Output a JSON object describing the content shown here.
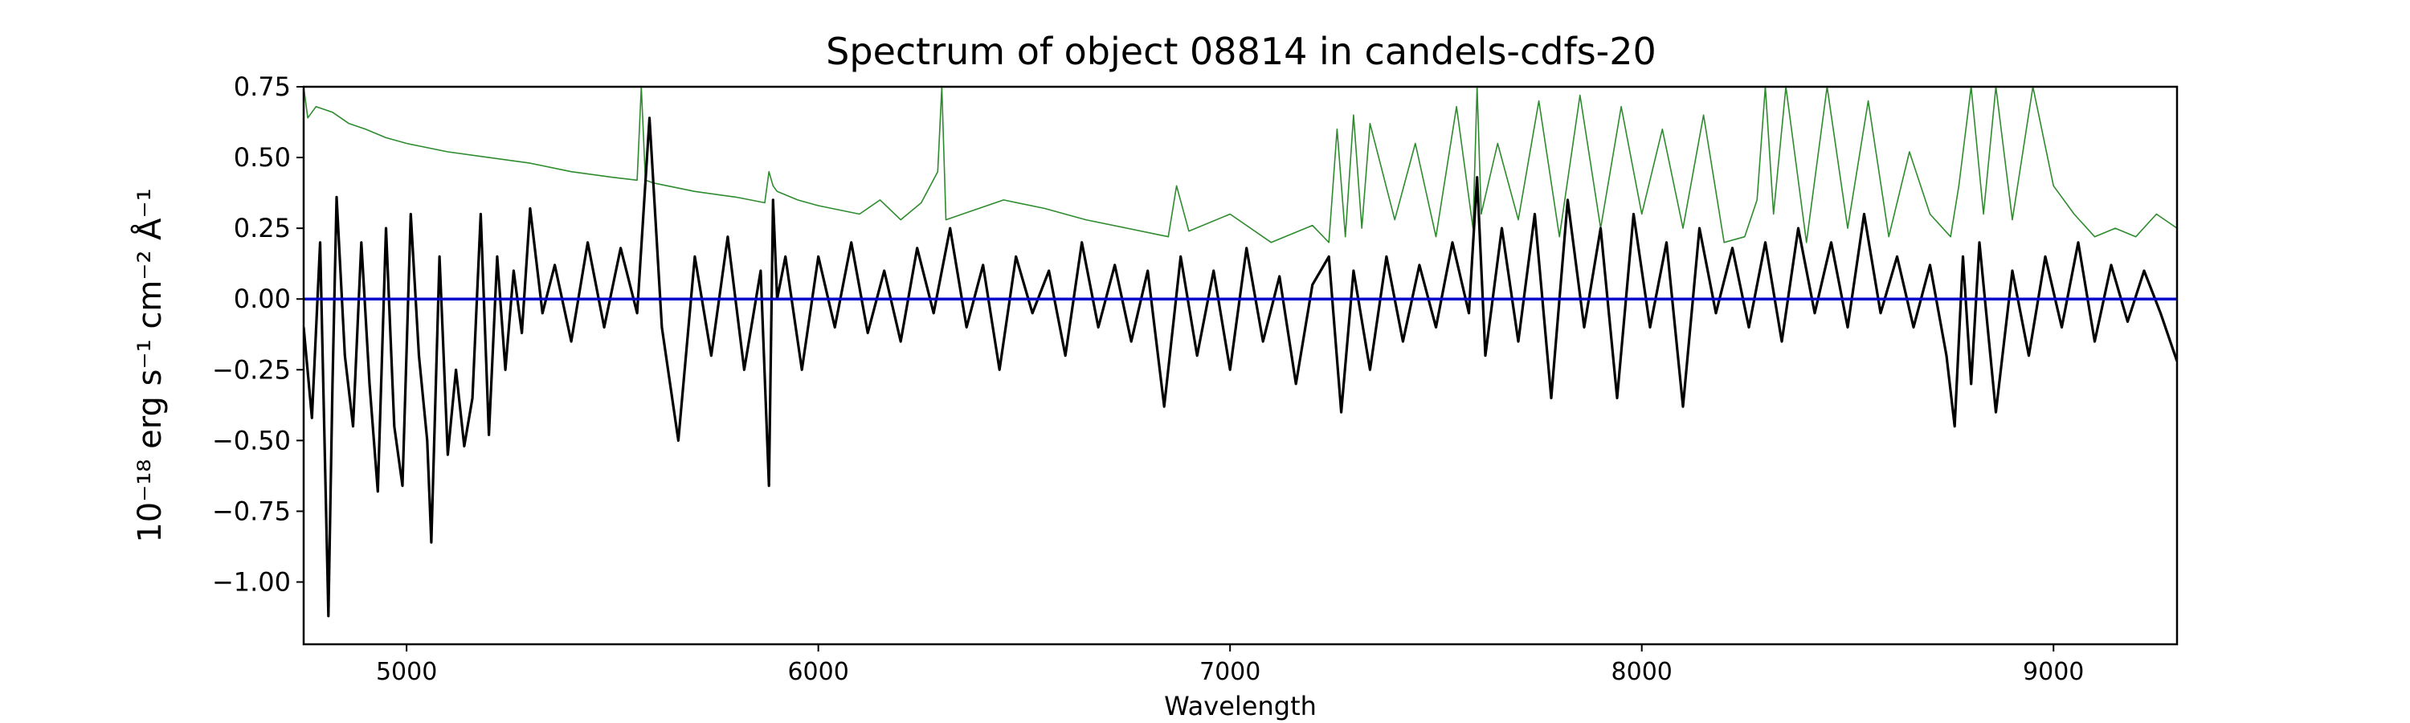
{
  "chart_data": {
    "type": "line",
    "title": "Spectrum of object 08814 in candels-cdfs-20",
    "xlabel": "Wavelength",
    "ylabel": "10⁻¹⁸ erg s⁻¹ cm⁻² Å⁻¹",
    "xlim": [
      4750,
      9300
    ],
    "ylim": [
      -1.22,
      0.75
    ],
    "xticks": [
      5000,
      6000,
      7000,
      8000,
      9000
    ],
    "xtick_labels": [
      "5000",
      "6000",
      "7000",
      "8000",
      "9000"
    ],
    "yticks": [
      0.75,
      0.5,
      0.25,
      0.0,
      -0.25,
      -0.5,
      -0.75,
      -1.0
    ],
    "ytick_labels": [
      "0.75",
      "0.50",
      "0.25",
      "0.00",
      "−0.25",
      "−0.50",
      "−0.75",
      "−1.00"
    ],
    "grid": false,
    "colors": {
      "flux": "#000000",
      "error": "#2e8b2e",
      "zero": "#0000cc"
    },
    "series": [
      {
        "role": "flux",
        "x": [
          4750,
          4770,
          4790,
          4810,
          4820,
          4830,
          4850,
          4870,
          4890,
          4910,
          4930,
          4950,
          4970,
          4990,
          5010,
          5030,
          5050,
          5060,
          5080,
          5100,
          5120,
          5140,
          5160,
          5180,
          5200,
          5220,
          5240,
          5260,
          5280,
          5300,
          5330,
          5360,
          5400,
          5440,
          5480,
          5520,
          5560,
          5590,
          5620,
          5660,
          5700,
          5740,
          5780,
          5820,
          5860,
          5880,
          5890,
          5900,
          5920,
          5960,
          6000,
          6040,
          6080,
          6120,
          6160,
          6200,
          6240,
          6280,
          6320,
          6360,
          6400,
          6440,
          6480,
          6520,
          6560,
          6600,
          6640,
          6680,
          6720,
          6760,
          6800,
          6840,
          6880,
          6920,
          6960,
          7000,
          7040,
          7080,
          7120,
          7160,
          7200,
          7240,
          7270,
          7300,
          7340,
          7380,
          7420,
          7460,
          7500,
          7540,
          7580,
          7600,
          7620,
          7660,
          7700,
          7740,
          7780,
          7820,
          7860,
          7900,
          7940,
          7980,
          8020,
          8060,
          8100,
          8140,
          8180,
          8220,
          8260,
          8300,
          8340,
          8380,
          8420,
          8460,
          8500,
          8540,
          8580,
          8620,
          8660,
          8700,
          8740,
          8760,
          8780,
          8800,
          8820,
          8860,
          8900,
          8940,
          8980,
          9020,
          9060,
          9100,
          9140,
          9180,
          9220,
          9260,
          9300
        ],
        "y": [
          -0.1,
          -0.42,
          0.2,
          -1.12,
          -0.3,
          0.36,
          -0.2,
          -0.45,
          0.2,
          -0.3,
          -0.68,
          0.25,
          -0.45,
          -0.66,
          0.3,
          -0.2,
          -0.5,
          -0.86,
          0.15,
          -0.55,
          -0.25,
          -0.52,
          -0.35,
          0.3,
          -0.48,
          0.15,
          -0.25,
          0.1,
          -0.12,
          0.32,
          -0.05,
          0.12,
          -0.15,
          0.2,
          -0.1,
          0.18,
          -0.05,
          0.64,
          -0.1,
          -0.5,
          0.15,
          -0.2,
          0.22,
          -0.25,
          0.1,
          -0.66,
          0.35,
          0.0,
          0.15,
          -0.25,
          0.15,
          -0.1,
          0.2,
          -0.12,
          0.1,
          -0.15,
          0.18,
          -0.05,
          0.25,
          -0.1,
          0.12,
          -0.25,
          0.15,
          -0.05,
          0.1,
          -0.2,
          0.2,
          -0.1,
          0.12,
          -0.15,
          0.1,
          -0.38,
          0.15,
          -0.2,
          0.1,
          -0.25,
          0.18,
          -0.15,
          0.08,
          -0.3,
          0.05,
          0.15,
          -0.4,
          0.1,
          -0.25,
          0.15,
          -0.15,
          0.12,
          -0.1,
          0.2,
          -0.05,
          0.43,
          -0.2,
          0.25,
          -0.15,
          0.3,
          -0.35,
          0.35,
          -0.1,
          0.25,
          -0.35,
          0.3,
          -0.1,
          0.2,
          -0.38,
          0.25,
          -0.05,
          0.18,
          -0.1,
          0.2,
          -0.15,
          0.25,
          -0.05,
          0.2,
          -0.1,
          0.3,
          -0.05,
          0.15,
          -0.1,
          0.12,
          -0.2,
          -0.45,
          0.15,
          -0.3,
          0.2,
          -0.4,
          0.1,
          -0.2,
          0.15,
          -0.1,
          0.2,
          -0.15,
          0.12,
          -0.08,
          0.1,
          -0.05,
          -0.22
        ]
      },
      {
        "role": "error",
        "x": [
          4750,
          4760,
          4780,
          4820,
          4860,
          4900,
          4950,
          5000,
          5100,
          5200,
          5300,
          5400,
          5500,
          5560,
          5570,
          5580,
          5600,
          5700,
          5800,
          5870,
          5880,
          5890,
          5900,
          5950,
          6000,
          6100,
          6150,
          6200,
          6250,
          6290,
          6300,
          6310,
          6350,
          6450,
          6550,
          6650,
          6750,
          6850,
          6870,
          6900,
          7000,
          7100,
          7200,
          7240,
          7260,
          7280,
          7300,
          7320,
          7340,
          7400,
          7450,
          7500,
          7550,
          7590,
          7600,
          7610,
          7650,
          7700,
          7750,
          7800,
          7850,
          7900,
          7950,
          8000,
          8050,
          8100,
          8150,
          8200,
          8250,
          8280,
          8300,
          8320,
          8350,
          8400,
          8450,
          8500,
          8550,
          8600,
          8650,
          8700,
          8750,
          8770,
          8800,
          8830,
          8860,
          8900,
          8950,
          9000,
          9050,
          9100,
          9150,
          9200,
          9250,
          9300
        ],
        "y": [
          0.75,
          0.64,
          0.68,
          0.66,
          0.62,
          0.6,
          0.57,
          0.55,
          0.52,
          0.5,
          0.48,
          0.45,
          0.43,
          0.42,
          0.75,
          0.42,
          0.41,
          0.38,
          0.36,
          0.34,
          0.45,
          0.4,
          0.38,
          0.35,
          0.33,
          0.3,
          0.35,
          0.28,
          0.34,
          0.45,
          0.75,
          0.28,
          0.3,
          0.35,
          0.32,
          0.28,
          0.25,
          0.22,
          0.4,
          0.24,
          0.3,
          0.2,
          0.26,
          0.2,
          0.6,
          0.22,
          0.65,
          0.25,
          0.62,
          0.28,
          0.55,
          0.22,
          0.68,
          0.25,
          0.75,
          0.3,
          0.55,
          0.28,
          0.7,
          0.22,
          0.72,
          0.25,
          0.68,
          0.3,
          0.6,
          0.25,
          0.65,
          0.2,
          0.22,
          0.35,
          0.75,
          0.3,
          0.75,
          0.2,
          0.75,
          0.25,
          0.7,
          0.22,
          0.52,
          0.3,
          0.22,
          0.4,
          0.75,
          0.3,
          0.75,
          0.28,
          0.75,
          0.4,
          0.3,
          0.22,
          0.25,
          0.22,
          0.3,
          0.25
        ]
      },
      {
        "role": "zero",
        "x": [
          4750,
          9300
        ],
        "y": [
          0,
          0
        ]
      }
    ]
  }
}
